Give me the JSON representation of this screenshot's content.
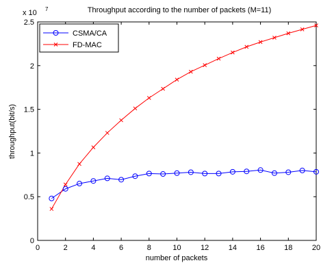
{
  "chart_data": {
    "type": "line",
    "title": "Throughput according to the number of packets (M=11)",
    "xlabel": "number of packets",
    "ylabel": "throughput(bit/s)",
    "y_multiplier": "x 10",
    "y_exponent": "7",
    "xlim": [
      0,
      20
    ],
    "ylim": [
      0,
      25000000
    ],
    "x_ticks": [
      0,
      2,
      4,
      6,
      8,
      10,
      12,
      14,
      16,
      18,
      20
    ],
    "y_ticks": [
      0,
      5000000,
      10000000,
      15000000,
      20000000,
      25000000
    ],
    "y_tick_labels": [
      "0",
      "0.5",
      "1",
      "1.5",
      "2",
      "2.5"
    ],
    "grid": false,
    "legend_position": "top-left",
    "x": [
      1,
      2,
      3,
      4,
      5,
      6,
      7,
      8,
      9,
      10,
      11,
      12,
      13,
      14,
      15,
      16,
      17,
      18,
      19,
      20
    ],
    "series": [
      {
        "name": "CSMA/CA",
        "color": "#0000ff",
        "marker": "circle",
        "values": [
          4800000,
          5900000,
          6500000,
          6800000,
          7100000,
          6950000,
          7350000,
          7650000,
          7600000,
          7700000,
          7800000,
          7650000,
          7650000,
          7850000,
          7900000,
          8050000,
          7700000,
          7800000,
          8000000,
          7850000
        ]
      },
      {
        "name": "FD-MAC",
        "color": "#ff0000",
        "marker": "x",
        "values": [
          3600000,
          6400000,
          8750000,
          10650000,
          12300000,
          13750000,
          15100000,
          16300000,
          17350000,
          18400000,
          19300000,
          20050000,
          20800000,
          21500000,
          22150000,
          22700000,
          23200000,
          23700000,
          24150000,
          24600000
        ]
      }
    ]
  }
}
